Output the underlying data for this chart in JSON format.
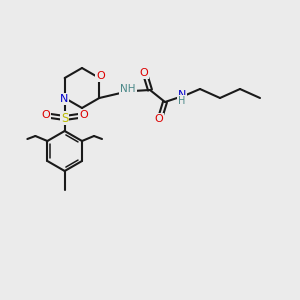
{
  "bg_color": "#ebebeb",
  "bond_color": "#1a1a1a",
  "atom_colors": {
    "O": "#dd0000",
    "N": "#0000cc",
    "S": "#bbbb00",
    "H": "#4a8888",
    "C": "#1a1a1a"
  },
  "figsize": [
    3.0,
    3.0
  ],
  "dpi": 100,
  "lw": 1.5,
  "lw_inner": 1.1,
  "fs": 8.0
}
